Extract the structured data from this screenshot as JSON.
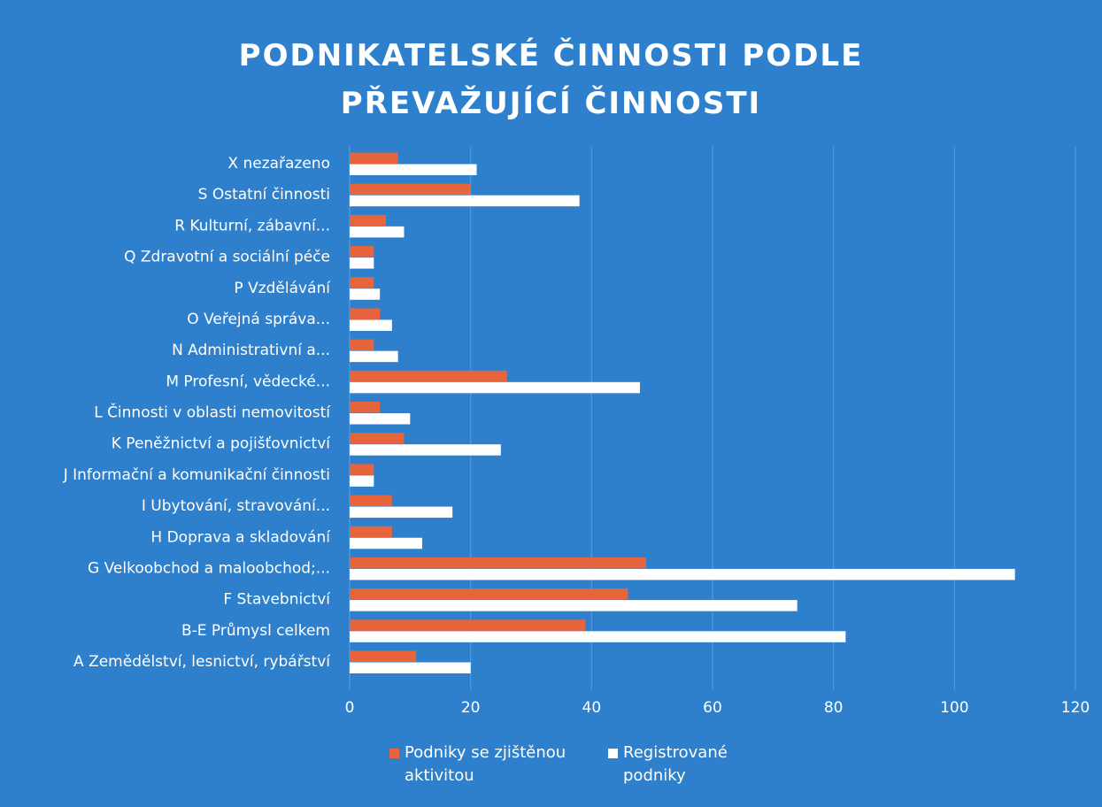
{
  "chart_data": {
    "type": "bar",
    "orientation": "horizontal",
    "title": "PODNIKATELSKÉ ČINNOSTI PODLE PŘEVAŽUJÍCÍ ČINNOSTI",
    "categories": [
      "A Zemědělství, lesnictví, rybářství",
      "B-E Průmysl celkem",
      "F Stavebnictví",
      "G Velkoobchod a maloobchod;...",
      "H Doprava a skladování",
      "I Ubytování, stravování...",
      "J Informační a komunikační činnosti",
      "K Peněžnictví a pojišťovnictví",
      "L Činnosti v oblasti nemovitostí",
      "M Profesní, vědecké...",
      "N Administrativní a...",
      "O Veřejná správa...",
      "P Vzdělávání",
      "Q Zdravotní a sociální péče",
      "R Kulturní, zábavní...",
      "S Ostatní činnosti",
      "X nezařazeno"
    ],
    "series": [
      {
        "name": "Podniky se zjištěnou aktivitou",
        "color": "#e8643c",
        "values": [
          11,
          39,
          46,
          49,
          7,
          7,
          4,
          9,
          5,
          26,
          4,
          5,
          4,
          4,
          6,
          20,
          8
        ]
      },
      {
        "name": "Registrované podniky",
        "color": "#ffffff",
        "values": [
          20,
          82,
          74,
          110,
          12,
          17,
          4,
          25,
          10,
          48,
          8,
          7,
          5,
          4,
          9,
          38,
          21
        ]
      }
    ],
    "xlim": [
      0,
      120
    ],
    "xticks": [
      0,
      20,
      40,
      60,
      80,
      100,
      120
    ],
    "grid": true
  }
}
